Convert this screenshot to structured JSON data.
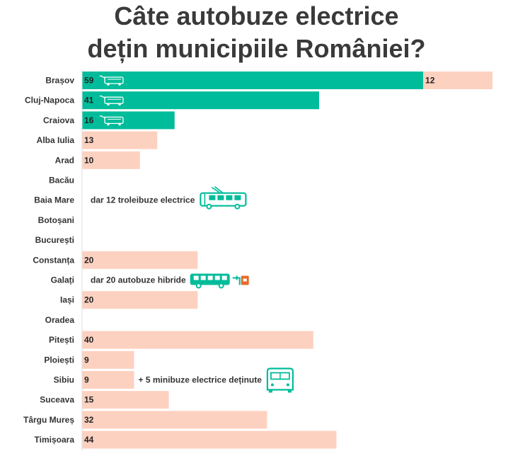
{
  "title": {
    "line1": "Câte autobuze electrice",
    "line2": "dețin municipiile României?"
  },
  "colors": {
    "electric": "#00bc9a",
    "other": "#fdd1c0",
    "icon": "#00bc9a",
    "hybrid_accent": "#e86a2c"
  },
  "chart_data": {
    "type": "bar",
    "orientation": "horizontal",
    "stacked": true,
    "categories": [
      "Brașov",
      "Cluj-Napoca",
      "Craiova",
      "Alba Iulia",
      "Arad",
      "Bacău",
      "Baia Mare",
      "Botoșani",
      "București",
      "Constanța",
      "Galați",
      "Iași",
      "Oradea",
      "Pitești",
      "Ploiești",
      "Sibiu",
      "Suceava",
      "Târgu Mureș",
      "Timișoara"
    ],
    "series": [
      {
        "key": "electric",
        "values": [
          59,
          41,
          16,
          0,
          0,
          0,
          0,
          0,
          0,
          0,
          0,
          0,
          0,
          0,
          0,
          0,
          0,
          0,
          0
        ]
      },
      {
        "key": "other",
        "values": [
          12,
          0,
          0,
          13,
          10,
          0,
          0,
          0,
          0,
          20,
          0,
          20,
          0,
          40,
          9,
          9,
          15,
          32,
          44
        ]
      }
    ],
    "electric_icon_rows": [
      "Brașov",
      "Cluj-Napoca",
      "Craiova"
    ],
    "annotations": [
      {
        "category": "Baia Mare",
        "text": "dar 12 troleibuze electrice",
        "icon": "trolleybus-icon"
      },
      {
        "category": "Galați",
        "text": "dar 20 autobuze hibride",
        "icon": "hybrid-bus-icon"
      },
      {
        "category": "Sibiu",
        "text": "+ 5 minibuze electrice deținute",
        "icon": "minibus-icon"
      }
    ],
    "grid": false,
    "legend": "none"
  }
}
